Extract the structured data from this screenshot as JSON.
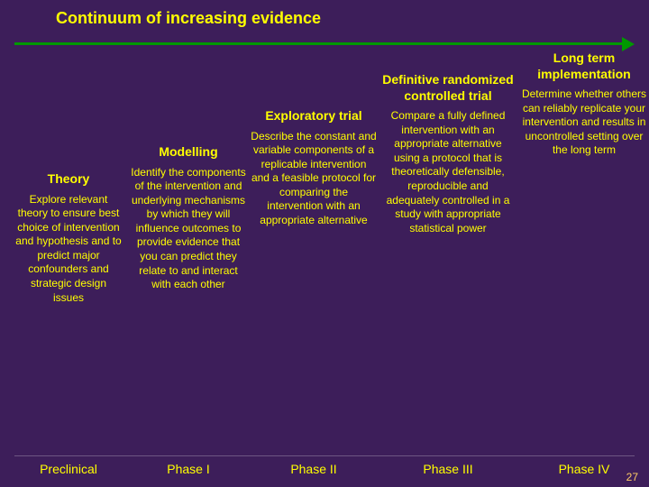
{
  "title": "Continuum of increasing evidence",
  "page_number": "27",
  "colors": {
    "background": "#3d1e5a",
    "text": "#ffff00",
    "arrow": "#009900",
    "page_number": "#ffcc66"
  },
  "arrow": {
    "direction": "right",
    "color": "#009900"
  },
  "stages": [
    {
      "title": "Theory",
      "body": "Explore relevant theory to ensure best choice of intervention and hypothesis and to predict major confounders and strategic design issues",
      "phase": "Preclinical"
    },
    {
      "title": "Modelling",
      "body": "Identify the components of the intervention and underlying mechanisms by which they will influence outcomes to provide evidence that you can predict they relate to and interact with each other",
      "phase": "Phase I"
    },
    {
      "title": "Exploratory trial",
      "body": "Describe the constant and variable components of a replicable intervention and a feasible protocol for comparing the intervention with an appropriate alternative",
      "phase": "Phase II"
    },
    {
      "title": "Definitive randomized controlled trial",
      "body": "Compare a fully defined intervention with an appropriate alternative using a protocol that is theoretically defensible, reproducible and adequately controlled in a study with appropriate statistical power",
      "phase": "Phase III"
    },
    {
      "title": "Long term implementation",
      "body": "Determine whether others can reliably replicate your intervention and results in uncontrolled setting over the long term",
      "phase": "Phase IV"
    }
  ]
}
